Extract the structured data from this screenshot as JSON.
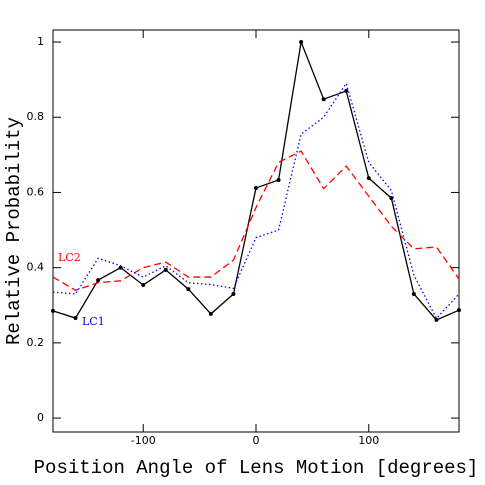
{
  "chart_data": {
    "type": "line",
    "x_label": "Position Angle of Lens Motion [degrees]",
    "y_label": "Relative Probability",
    "x": [
      -180,
      -160,
      -140,
      -120,
      -100,
      -80,
      -60,
      -40,
      -20,
      0,
      20,
      40,
      60,
      80,
      100,
      120,
      140,
      160,
      180
    ],
    "series": [
      {
        "color": "#000000",
        "dash": "solid",
        "markers": true,
        "values": [
          0.285,
          0.266,
          0.367,
          0.4,
          0.354,
          0.394,
          0.343,
          0.277,
          0.33,
          0.612,
          0.633,
          1.0,
          0.848,
          0.87,
          0.638,
          0.585,
          0.33,
          0.261,
          0.287
        ]
      },
      {
        "name": "LC2",
        "color": "#ff0000",
        "dash": "dashed",
        "values": [
          0.375,
          0.34,
          0.36,
          0.365,
          0.4,
          0.415,
          0.375,
          0.375,
          0.42,
          0.56,
          0.68,
          0.71,
          0.61,
          0.67,
          0.59,
          0.51,
          0.45,
          0.455,
          0.37
        ]
      },
      {
        "name": "LC1",
        "color": "#0000ff",
        "dash": "dotted",
        "values": [
          0.335,
          0.33,
          0.425,
          0.405,
          0.375,
          0.405,
          0.36,
          0.355,
          0.345,
          0.48,
          0.5,
          0.755,
          0.8,
          0.89,
          0.68,
          0.605,
          0.38,
          0.265,
          0.33
        ]
      }
    ],
    "xlim": [
      -180,
      180
    ],
    "xticks": [
      -100,
      0,
      100
    ],
    "ylim": [
      -0.037,
      1.032
    ],
    "yticks": [
      0,
      0.2,
      0.4,
      0.6,
      0.8,
      1
    ]
  }
}
